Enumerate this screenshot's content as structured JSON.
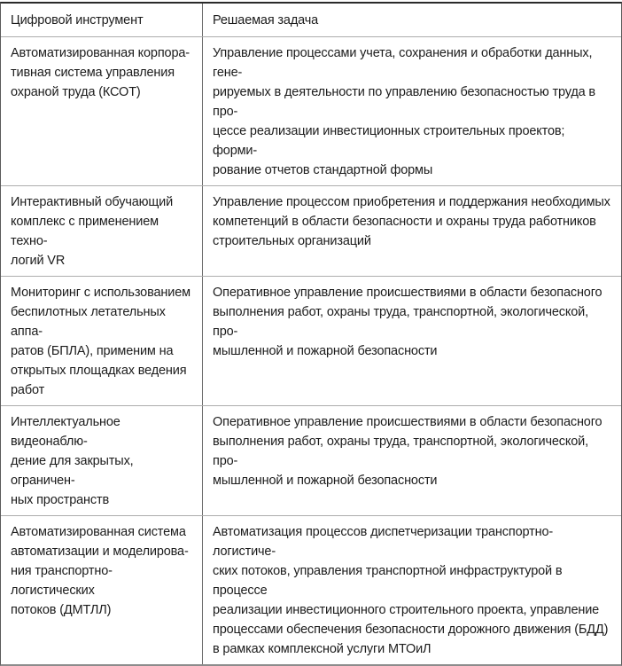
{
  "table": {
    "header": {
      "tool_label": "Цифровой инструмент",
      "task_label": "Решаемая задача"
    },
    "rows": [
      {
        "tool": "Автоматизированная корпора-\nтивная система управления\nохраной труда (КСОТ)",
        "task": "Управление процессами учета, сохранения и обработки данных, гене-\nрируемых в деятельности по управлению безопасностью труда в про-\nцессе реализации инвестиционных строительных проектов; форми-\nрование отчетов стандартной формы"
      },
      {
        "tool": "Интерактивный обучающий\nкомплекс с применением техно-\nлогий VR",
        "task": "Управление процессом приобретения и поддержания необходимых\nкомпетенций в области безопасности и охраны труда работников\nстроительных организаций"
      },
      {
        "tool": "Мониторинг с использованием\nбеспилотных летательных аппа-\nратов (БПЛА), применим на\nоткрытых площадках ведения\nработ",
        "task": "Оперативное управление происшествиями в области безопасного\nвыполнения работ, охраны труда, транспортной, экологической, про-\nмышленной и пожарной безопасности"
      },
      {
        "tool": "Интеллектуальное видеонаблю-\nдение для закрытых, ограничен-\nных пространств",
        "task": "Оперативное управление происшествиями в области безопасного\nвыполнения работ, охраны труда, транспортной, экологической, про-\nмышленной и пожарной безопасности"
      },
      {
        "tool": "Автоматизированная система\nавтоматизации и моделирова-\nния транспортно-логистических\nпотоков (ДМТЛЛ)",
        "task": "Автоматизация процессов диспетчеризации транспортно-логистиче-\nских потоков, управления транспортной инфраструктурой в процессе\nреализации инвестиционного строительного проекта, управление\nпроцессами обеспечения безопасности дорожного движения (БДД)\nв рамках комплексной услуги МТОиЛ"
      }
    ]
  }
}
